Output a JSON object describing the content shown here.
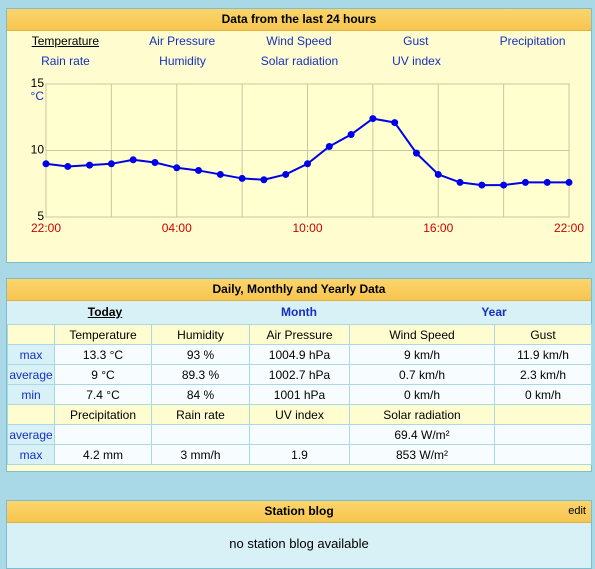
{
  "chart_panel": {
    "title": "Data from the last 24 hours",
    "tabs": [
      [
        "Temperature",
        "Air Pressure",
        "Wind Speed",
        "Gust",
        "Precipitation"
      ],
      [
        "Rain rate",
        "Humidity",
        "Solar radiation",
        "UV index"
      ]
    ],
    "chart": {
      "type": "line",
      "y_unit": "°C",
      "categories": [
        "22:00",
        null,
        null,
        null,
        null,
        null,
        "04:00",
        null,
        null,
        null,
        null,
        null,
        "10:00",
        null,
        null,
        null,
        null,
        null,
        "16:00",
        null,
        null,
        null,
        null,
        null,
        "22:00"
      ],
      "values": [
        9.0,
        8.8,
        8.9,
        9.0,
        9.3,
        9.1,
        8.7,
        8.5,
        8.2,
        7.9,
        7.8,
        8.2,
        9.0,
        10.3,
        11.2,
        12.4,
        12.1,
        9.8,
        8.2,
        7.6,
        7.4,
        7.4,
        7.6,
        7.6,
        7.6
      ],
      "color": "#0000e6",
      "ylim": [
        5,
        15
      ],
      "yticks": [
        5,
        10,
        15
      ],
      "grid": true
    }
  },
  "stats_panel": {
    "title": "Daily, Monthly and Yearly Data",
    "periods": [
      "Today",
      "Month",
      "Year"
    ],
    "sections": [
      {
        "headers": [
          "Temperature",
          "Humidity",
          "Air Pressure",
          "Wind Speed",
          "Gust"
        ],
        "rows": [
          {
            "label": "max",
            "cells": [
              "13.3 °C",
              "93 %",
              "1004.9 hPa",
              "9 km/h",
              "11.9 km/h"
            ]
          },
          {
            "label": "average",
            "cells": [
              "9 °C",
              "89.3 %",
              "1002.7 hPa",
              "0.7 km/h",
              "2.3 km/h"
            ]
          },
          {
            "label": "min",
            "cells": [
              "7.4 °C",
              "84 %",
              "1001 hPa",
              "0 km/h",
              "0 km/h"
            ]
          }
        ]
      },
      {
        "headers": [
          "Precipitation",
          "Rain rate",
          "UV index",
          "Solar radiation",
          null
        ],
        "rows": [
          {
            "label": "average",
            "cells": [
              null,
              null,
              null,
              "69.4 W/m²",
              null
            ]
          },
          {
            "label": "max",
            "cells": [
              "4.2 mm",
              "3 mm/h",
              "1.9",
              "853 W/m²",
              null
            ]
          }
        ]
      }
    ]
  },
  "blog_panel": {
    "title": "Station blog",
    "edit": "edit",
    "message": "no station blog available"
  }
}
